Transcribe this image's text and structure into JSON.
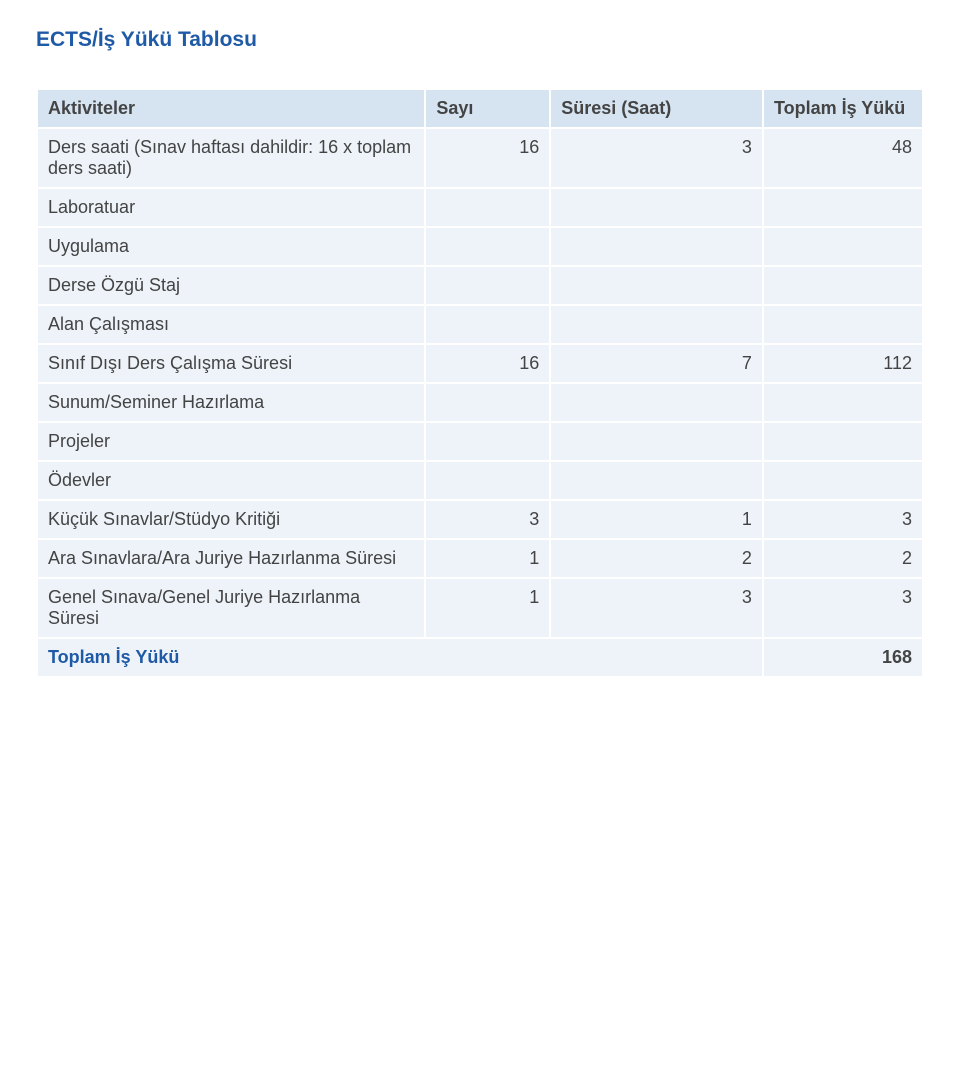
{
  "title": "ECTS/İş Yükü Tablosu",
  "title_color": "#1f5aa6",
  "title_fontsize": 21,
  "body_fontsize": 18,
  "body_text_color": "#444444",
  "header_bg": "#d6e4f2",
  "row_bg": "#edf3f9",
  "total_bg": "#edf3f9",
  "columns": [
    {
      "label": "Aktiviteler"
    },
    {
      "label": "Sayı"
    },
    {
      "label": "Süresi (Saat)"
    },
    {
      "label": "Toplam İş Yükü"
    }
  ],
  "rows": [
    {
      "label": "Ders saati (Sınav haftası dahildir: 16 x toplam ders saati)",
      "v1": "16",
      "v2": "3",
      "v3": "48"
    },
    {
      "label": "Laboratuar",
      "v1": "",
      "v2": "",
      "v3": ""
    },
    {
      "label": "Uygulama",
      "v1": "",
      "v2": "",
      "v3": ""
    },
    {
      "label": "Derse Özgü Staj",
      "v1": "",
      "v2": "",
      "v3": ""
    },
    {
      "label": "Alan Çalışması",
      "v1": "",
      "v2": "",
      "v3": ""
    },
    {
      "label": "Sınıf Dışı Ders Çalışma Süresi",
      "v1": "16",
      "v2": "7",
      "v3": "112"
    },
    {
      "label": "Sunum/Seminer Hazırlama",
      "v1": "",
      "v2": "",
      "v3": ""
    },
    {
      "label": "Projeler",
      "v1": "",
      "v2": "",
      "v3": ""
    },
    {
      "label": "Ödevler",
      "v1": "",
      "v2": "",
      "v3": ""
    },
    {
      "label": "Küçük Sınavlar/Stüdyo Kritiği",
      "v1": "3",
      "v2": "1",
      "v3": "3"
    },
    {
      "label": "Ara Sınavlara/Ara Juriye Hazırlanma Süresi",
      "v1": "1",
      "v2": "2",
      "v3": "2"
    },
    {
      "label": "Genel Sınava/Genel Juriye Hazırlanma Süresi",
      "v1": "1",
      "v2": "3",
      "v3": "3"
    }
  ],
  "total": {
    "label": "Toplam İş Yükü",
    "value": "168"
  }
}
